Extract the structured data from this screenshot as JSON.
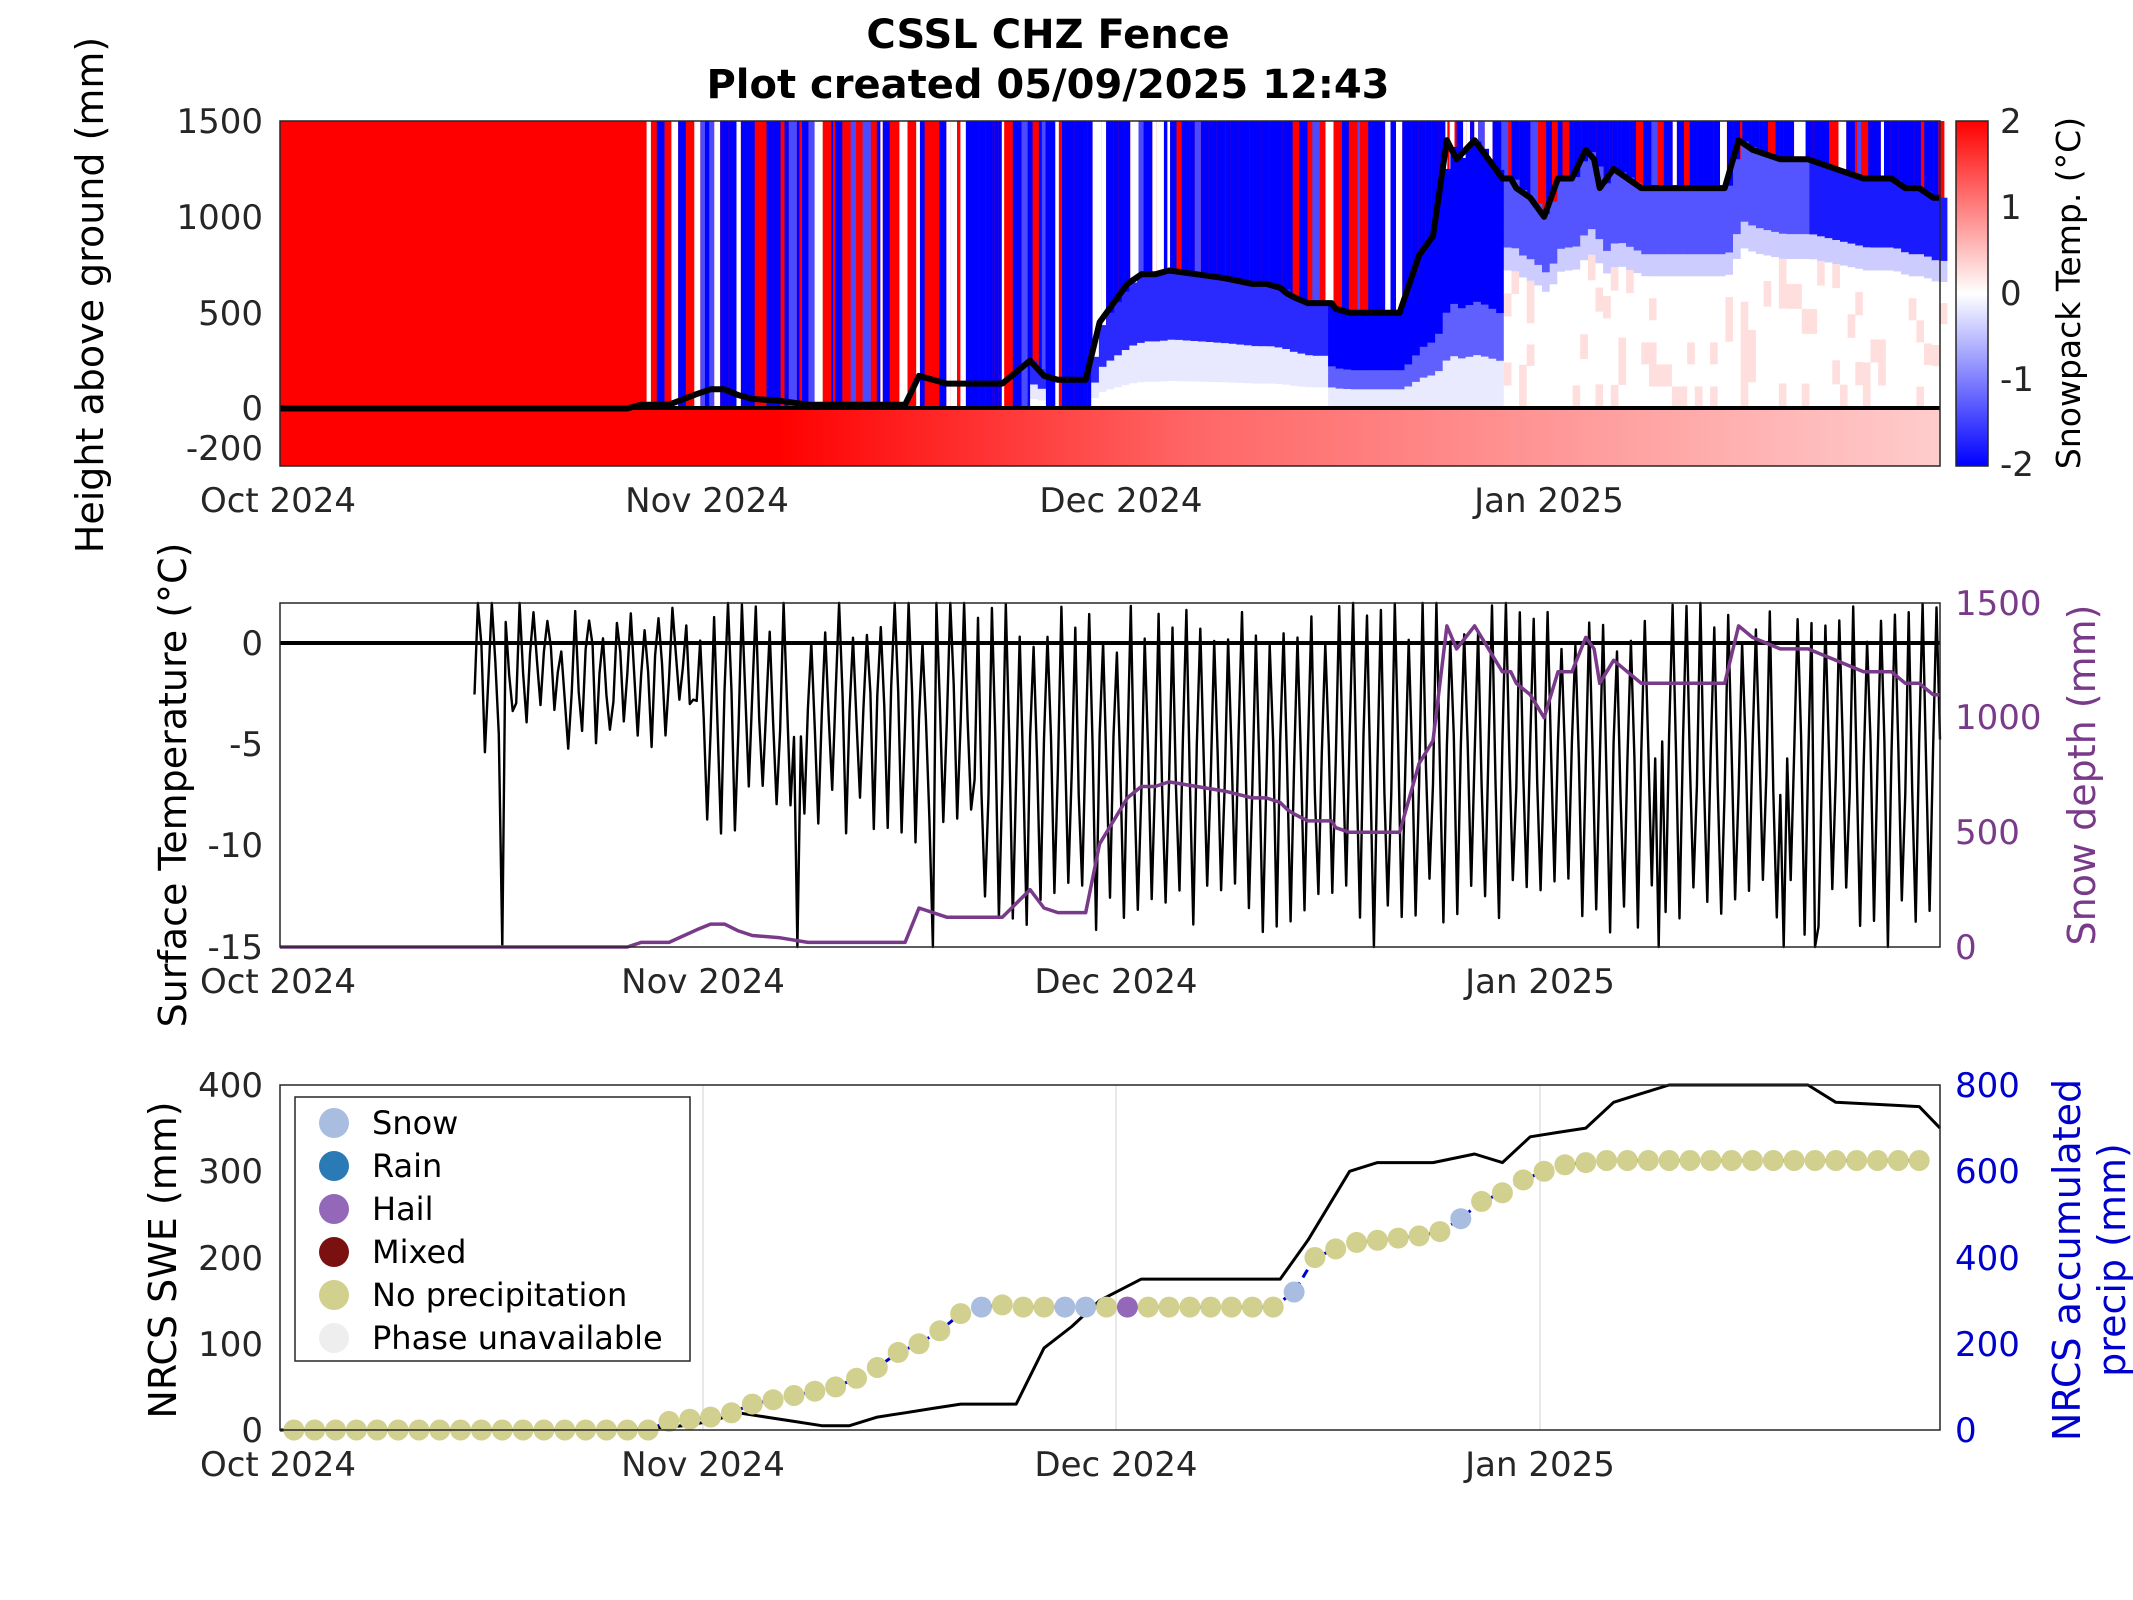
{
  "title": [
    "CSSL CHZ Fence",
    "Plot created 05/09/2025 12:43"
  ],
  "colors": {
    "warm": "#ff0000",
    "cold": "#0000ff",
    "snow_depth": "#7a3a8a",
    "precip_axis": "#0000cc",
    "snow_phase": "#a8bde0",
    "rain_phase": "#2a7ab5",
    "hail_phase": "#9468b8",
    "mixed_phase": "#7a1010",
    "no_precip_phase": "#d1d08e",
    "unavailable_phase": "#eeeeee"
  },
  "x_ticks": [
    "Oct 2024",
    "Nov 2024",
    "Dec 2024",
    "Jan 2025"
  ],
  "chart_data": [
    {
      "type": "heatmap",
      "ylabel": "Height above ground (mm)",
      "colorbar_label": "Snowpack Temp. (°C)",
      "ylim": [
        -300,
        1500
      ],
      "clim": [
        -2,
        2
      ],
      "y_ticks": [
        "1500",
        "1000",
        "500",
        "0",
        "-200"
      ],
      "colorbar_ticks": [
        "2",
        "1",
        "0",
        "-1",
        "-2"
      ],
      "x_days": [
        0,
        31,
        61,
        92
      ],
      "snow_depth_line": {
        "x_day": [
          0,
          25,
          26,
          28,
          30,
          31,
          32,
          33,
          34,
          36,
          38,
          39,
          40,
          41,
          43,
          45,
          46,
          48,
          50,
          52,
          54,
          55,
          56,
          57,
          58,
          59,
          60,
          61,
          62,
          63,
          64,
          66,
          68,
          70,
          71,
          72,
          72.5,
          73,
          74,
          75,
          75.7,
          76,
          77,
          78,
          79,
          79.6,
          80,
          80.6,
          82,
          83,
          84,
          84.7,
          86,
          87,
          88,
          88.6,
          89,
          90,
          91,
          92,
          92.6,
          93,
          94,
          94.6,
          95,
          96,
          98,
          101,
          104,
          105,
          106,
          108,
          110,
          112,
          114,
          116,
          117,
          118,
          119,
          119.5
        ],
        "depth_mm": [
          0,
          0,
          20,
          20,
          75,
          100,
          100,
          70,
          50,
          40,
          20,
          20,
          20,
          20,
          20,
          20,
          170,
          130,
          130,
          130,
          250,
          170,
          150,
          150,
          150,
          450,
          550,
          650,
          700,
          700,
          720,
          700,
          680,
          650,
          650,
          630,
          600,
          580,
          550,
          550,
          550,
          520,
          500,
          500,
          500,
          500,
          500,
          500,
          800,
          900,
          1400,
          1300,
          1400,
          1300,
          1200,
          1200,
          1150,
          1100,
          1000,
          1200,
          1200,
          1200,
          1350,
          1300,
          1150,
          1250,
          1150,
          1150,
          1150,
          1400,
          1350,
          1300,
          1300,
          1250,
          1200,
          1200,
          1150,
          1150,
          1100,
          1100
        ]
      }
    },
    {
      "type": "line",
      "ylabel": "Surface Temperature (°C)",
      "y2label": "Snow depth (mm)",
      "ylim": [
        -15,
        2
      ],
      "y2lim": [
        0,
        1500
      ],
      "y_ticks": [
        "0",
        "-5",
        "-10",
        "-15"
      ],
      "y2_ticks": [
        "1500",
        "1000",
        "500",
        "0"
      ],
      "series": [
        {
          "x_day": [
            0,
            25,
            26,
            28,
            30,
            31,
            32,
            33,
            34,
            36,
            38,
            39,
            40,
            41,
            43,
            45,
            46,
            48,
            50,
            52,
            54,
            55,
            56,
            57,
            58,
            59,
            60,
            61,
            62,
            63,
            64,
            66,
            68,
            70,
            71,
            72,
            72.5,
            73,
            74,
            75,
            75.7,
            76,
            77,
            78,
            79,
            79.6,
            80,
            80.6,
            82,
            83,
            84,
            84.7,
            86,
            87,
            88,
            88.6,
            89,
            90,
            91,
            92,
            92.6,
            93,
            94,
            94.6,
            95,
            96,
            98,
            101,
            104,
            105,
            106,
            108,
            110,
            112,
            114,
            116,
            117,
            118,
            119,
            119.5
          ],
          "depth_mm": [
            0,
            0,
            20,
            20,
            75,
            100,
            100,
            70,
            50,
            40,
            20,
            20,
            20,
            20,
            20,
            20,
            170,
            130,
            130,
            130,
            250,
            170,
            150,
            150,
            150,
            450,
            550,
            650,
            700,
            700,
            720,
            700,
            680,
            650,
            650,
            630,
            600,
            580,
            550,
            550,
            550,
            520,
            500,
            500,
            500,
            500,
            500,
            500,
            800,
            900,
            1400,
            1300,
            1400,
            1300,
            1200,
            1200,
            1150,
            1100,
            1000,
            1200,
            1200,
            1200,
            1350,
            1300,
            1150,
            1250,
            1150,
            1150,
            1150,
            1400,
            1350,
            1300,
            1300,
            1250,
            1200,
            1200,
            1150,
            1150,
            1100,
            1100
          ]
        }
      ]
    },
    {
      "type": "scatter",
      "ylabel": "NRCS SWE (mm)",
      "y2label": [
        "NRCS accumulated",
        "precip (mm)"
      ],
      "ylim": [
        0,
        400
      ],
      "y2lim": [
        0,
        800
      ],
      "y_ticks": [
        "400",
        "300",
        "200",
        "100",
        "0"
      ],
      "y2_ticks": [
        "800",
        "600",
        "400",
        "200",
        "0"
      ],
      "legend": [
        "Snow",
        "Rain",
        "Hail",
        "Mixed",
        "No precipitation",
        "Phase unavailable"
      ],
      "legend_position": "top-left",
      "swe_line": {
        "x_day": [
          0,
          25,
          29,
          31,
          33,
          35,
          37,
          39,
          41,
          43,
          45,
          47,
          49,
          51,
          53,
          55,
          57,
          59,
          62,
          64,
          66,
          69,
          71,
          72,
          74,
          77,
          79,
          81,
          83,
          86,
          88,
          90,
          92,
          94,
          96,
          98,
          100,
          104,
          106,
          110,
          112,
          118,
          119.5
        ],
        "swe_mm": [
          0,
          0,
          5,
          10,
          20,
          15,
          10,
          5,
          5,
          15,
          20,
          25,
          30,
          30,
          30,
          95,
          120,
          150,
          175,
          175,
          175,
          175,
          175,
          175,
          220,
          300,
          310,
          310,
          310,
          320,
          310,
          340,
          345,
          350,
          380,
          390,
          405,
          405,
          400,
          400,
          380,
          375,
          350
        ]
      },
      "precip_points": {
        "x_day": [
          1,
          2.5,
          4,
          5.5,
          7,
          8.5,
          10,
          11.5,
          13,
          14.5,
          16,
          17.5,
          19,
          20.5,
          22,
          23.5,
          25,
          26.5,
          28,
          29.5,
          31,
          32.5,
          34,
          35.5,
          37,
          38.5,
          40,
          41.5,
          43,
          44.5,
          46,
          47.5,
          49,
          50.5,
          52,
          53.5,
          55,
          56.5,
          58,
          59.5,
          61,
          62.5,
          64,
          65.5,
          67,
          68.5,
          70,
          71.5,
          73,
          74.5,
          76,
          77.5,
          79,
          80.5,
          82,
          83.5,
          85,
          86.5,
          88,
          89.5,
          91,
          92.5,
          94,
          95.5,
          97,
          98.5,
          100,
          101.5,
          103,
          104.5,
          106,
          107.5,
          109,
          110.5,
          112,
          113.5,
          115,
          116.5,
          118
        ],
        "precip_mm": [
          0,
          0,
          0,
          0,
          0,
          0,
          0,
          0,
          0,
          0,
          0,
          0,
          0,
          0,
          0,
          0,
          0,
          0,
          20,
          25,
          30,
          40,
          60,
          70,
          80,
          90,
          100,
          120,
          145,
          180,
          200,
          230,
          270,
          285,
          290,
          285,
          285,
          285,
          285,
          285,
          285,
          285,
          285,
          285,
          285,
          285,
          285,
          285,
          320,
          400,
          420,
          435,
          440,
          445,
          450,
          460,
          490,
          530,
          550,
          580,
          600,
          615,
          620,
          625,
          625,
          625,
          625,
          625,
          625,
          625,
          625,
          625,
          625,
          625,
          625,
          625,
          625,
          625,
          625
        ],
        "phase": [
          "none",
          "none",
          "none",
          "none",
          "none",
          "none",
          "none",
          "none",
          "none",
          "none",
          "none",
          "none",
          "none",
          "none",
          "none",
          "none",
          "none",
          "none",
          "none",
          "none",
          "none",
          "none",
          "none",
          "none",
          "none",
          "none",
          "none",
          "none",
          "none",
          "none",
          "none",
          "none",
          "none",
          "snow",
          "none",
          "none",
          "none",
          "snow",
          "snow",
          "none",
          "hail",
          "none",
          "none",
          "none",
          "none",
          "none",
          "none",
          "none",
          "snow",
          "none",
          "none",
          "none",
          "none",
          "none",
          "none",
          "none",
          "snow",
          "none",
          "none",
          "none",
          "none",
          "none",
          "none",
          "none",
          "none",
          "none",
          "none",
          "none",
          "none",
          "none",
          "none",
          "none",
          "none",
          "none",
          "none",
          "none",
          "none",
          "none",
          "none"
        ]
      }
    }
  ]
}
